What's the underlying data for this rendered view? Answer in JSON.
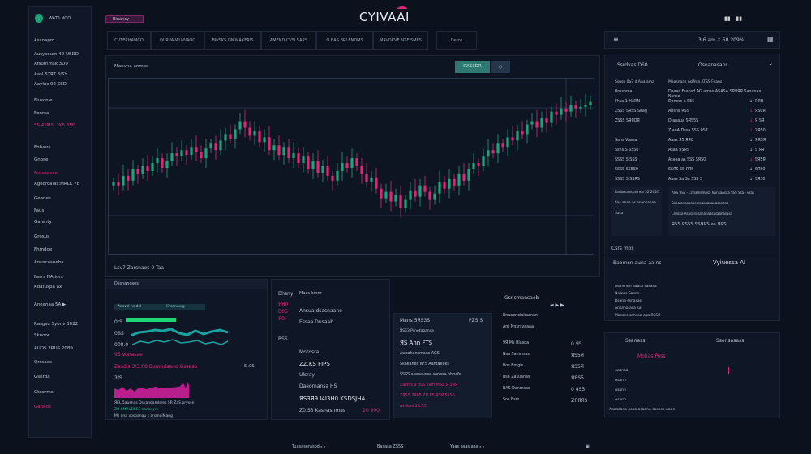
{
  "app": {
    "logo": "CYIVAAI",
    "user": "WAT5 NOO",
    "badge": "Binancy",
    "icons": [
      "filter-icon",
      "grid-icon"
    ],
    "header_stats": "3.6 am  ↕  50.209%"
  },
  "tabs": [
    "CVTERHAMCO",
    "QURVAVALNVAOQ",
    "BWSKS DN MAXERIS",
    "AMEND CVSLSARS",
    "O BAS BRI ENDMS",
    "MAVDKVE NXE SMES",
    "Deros"
  ],
  "sidebar": {
    "items": [
      {
        "label": "Assnapm"
      },
      {
        "label": "Ausysoum 42 USDD"
      },
      {
        "label": "Afsutnmsk 3D9"
      },
      {
        "label": "Aasl 5TRT 8/5Y"
      },
      {
        "label": "Aaylus 02 SSD"
      },
      {
        "label": "Fluscnle"
      },
      {
        "label": "Fonrsa"
      },
      {
        "label": "SS 4SMS. 2K5  3MS",
        "accent": true
      },
      {
        "label": "Fhtvors"
      },
      {
        "label": "Gnose"
      },
      {
        "label": "Fanuzavse",
        "accent": true
      },
      {
        "label": "Agoorcalas:MRLK 7B"
      },
      {
        "label": "Geanes"
      },
      {
        "label": "Faus"
      },
      {
        "label": "Gafanty"
      },
      {
        "label": "Grosus"
      },
      {
        "label": "Fhmdoe"
      },
      {
        "label": "Anuscasneba"
      },
      {
        "label": "Fasrs NAtiors"
      },
      {
        "label": "Kdatuspa ax"
      },
      {
        "label": "Aneanaa  5A  ▶"
      },
      {
        "label": "Rasgsu Syonv 3022"
      },
      {
        "label": "Sknoor"
      },
      {
        "label": "AUDS 2RUS 2089"
      },
      {
        "label": "Qrssaes"
      },
      {
        "label": "Gsnrda"
      },
      {
        "label": "Gteorms"
      },
      {
        "label": "Ganeds",
        "accent": true
      }
    ]
  },
  "chart": {
    "title": "Manvna anmas",
    "toggle_active": "ЯXS3DR",
    "toggle_other": "◇",
    "footer": "Lsv7 Zarsnaes  0  Taa",
    "closes": [
      40,
      38,
      44,
      41,
      48,
      45,
      50,
      47,
      52,
      55,
      49,
      53,
      58,
      56,
      60,
      57,
      62,
      59,
      55,
      61,
      64,
      60,
      66,
      70,
      67,
      73,
      78,
      74,
      69,
      72,
      65,
      68,
      60,
      63,
      57,
      62,
      55,
      58,
      52,
      56,
      48,
      53,
      46,
      50,
      44,
      41,
      47,
      52,
      49,
      55,
      50,
      45,
      40,
      43,
      36,
      30,
      34,
      28,
      32,
      24,
      29,
      35,
      31,
      38,
      34,
      29,
      33,
      40,
      36,
      42,
      38,
      45,
      41,
      48,
      52,
      50,
      56,
      60,
      58,
      64,
      62,
      68,
      66,
      72,
      70,
      76,
      78,
      74,
      80,
      77,
      84,
      82,
      86,
      84,
      88,
      86,
      87,
      88,
      90,
      89
    ]
  },
  "left_bottom": {
    "title": "Dssnanoxes",
    "chips": [
      "Adsvsl ns dsl",
      "Crsanauig"
    ],
    "labels": [
      "0tS",
      "0BS",
      "008.0",
      "9S Vonasae"
    ],
    "row1": "Zasdis 3/3.Я8 Bumndsano Ossesb",
    "row2": "3/S",
    "legend": [
      "ЯEL 5ausnas Dskanoamlsres  SR  ZaS prysse",
      "ZЯ  SMRUBSSE  kanasyrs",
      "Ms  ona vosoanau s ananoiMang"
    ],
    "tag": "Sl.0S"
  },
  "mid": {
    "tabs": [
      "Bhsny",
      "ЯЯ0",
      "B0Б",
      "Я0І",
      "BSS"
    ],
    "head": "Maos kmnr",
    "rows": [
      "Ansua dsasnaane",
      "Essaa Dusaab",
      "Mntosra",
      "ZZ.KS FIPS",
      "Ulsray",
      "Daeornansa HS",
      "ЯS3Я9 I4I3H0 KSDSJHA",
      "Z0.S3  Kasnasnmas",
      "20 990"
    ]
  },
  "order": {
    "head": "Mans 5ЯS3S",
    "head_r": "PZS S",
    "sub": "ЯS5З Psnotgoansa",
    "title": "ЯS Ann FTS",
    "rows": [
      "Awcahansmans AGS",
      "Skaeanes NFS Aantaeaes",
      "SSSS aseaavsee sonasa ohhafs",
      "Zasms a dSS 3am  MSZ.Я 2ЯЯ",
      "ZЯSS 7Я85  ZЯ Я5 ЯЗЯ 55S5",
      "Asdeas 2S.S3"
    ]
  },
  "book": {
    "head": "Gsnsmansaeb",
    "ctrl": "◄ ▶ ▶",
    "rows": [
      [
        "Bnaaenolakaanan",
        ""
      ],
      [
        "Ant  Nnsrsvaaaa",
        ""
      ],
      [
        "9Я Ms Rlasoa",
        "0 Я5"
      ],
      [
        "Nsa Sansnsas",
        "ЯS5Я"
      ],
      [
        "Bos Bmgis",
        "ЯS5Я"
      ],
      [
        "Bsa Zasuanas",
        "ЯЯS5"
      ],
      [
        "BAS Danmsas",
        "0 4S5"
      ],
      [
        "Sos Bsm",
        "ZЯЯЯS"
      ]
    ]
  },
  "right": {
    "sel_label": "Ssrdvas DS0",
    "sel_value": "Osnanasans",
    "hdr": [
      "Ssnsn 0a3 d Aaa ama",
      "Maasnaas nslfma ATSS Foans"
    ],
    "rows": [
      [
        "Rossoma",
        "Daaas  Fsansd AG amas ASASA  SЯЯЯЯ  Sananaa Nsnse",
        "",
        ""
      ],
      [
        "Fhsa  1 HARN",
        "Donsss a S55",
        "ЯЯЯ",
        false
      ],
      [
        "ZSSS  SЯSS Seag",
        "Ansna RSS",
        "ЯS0Я",
        true
      ],
      [
        "ZSSS  SЯЯOЯ",
        "D anaua  SЯS5S",
        "Я SЯ",
        true
      ],
      [
        "",
        "Z.anA  Dssa  SSS ЯS7",
        "ZЯ50",
        true
      ],
      [
        "Sans Vaasa",
        "Aaas Я5 ЯЯ0",
        "ЯЯSЯ",
        false
      ],
      [
        "Ssns S S5S0",
        "Asaa  ЯSЯS",
        "S ЯЯ",
        false
      ],
      [
        "SSSS  S SSS",
        "Asaaa as SSS SЯS0",
        "SЯ5Я",
        true
      ],
      [
        "SSSS  SS5S0",
        "SSЯS  SS ЯЯS",
        "SЯS0",
        false
      ],
      [
        "SSSS  S SSЯS",
        "Aaas Sa Sa SSS S",
        "SЯS0",
        false
      ]
    ],
    "info_left": [
      "Fanbmaas asnsa  52 2020",
      "Sas anaa as anansanaa",
      "Sasa"
    ],
    "info_right": [
      "AЯS ЯSS -  Cnnamsmnsa Nunsansaa  SSS Ssa  -  vsas",
      "Saaa anaaanas naaasanaaasanans",
      "Cnassa Asasanasananaasasaanasasa",
      "ЯSS ЯSSS SSЯЯS as ЯЯS"
    ],
    "caption": "Csrs mos",
    "sec_left": "Baornsn auna aa ns",
    "sec_right": "Vyiuessa AI",
    "list": [
      "Asmsnen aaara sasasa",
      "Nssass Sasns",
      "Rsana ssnasas",
      "Ansana asa sa",
      "Masses sahsaa asa ЯSSЯ"
    ],
    "bot_head_l": "Ssanass",
    "bot_head_r": "Ssonsasass",
    "bot_tag": "Mohas Poss",
    "bot_rows": [
      "Aasnaa",
      "Asann",
      "Asann",
      "Asann"
    ],
    "bot_foot": "Aaasaana asaa asaana sasasa Aaan"
  },
  "footer": [
    "Tuasaserasod  ₈ ₈",
    "Basasa  ZS5S",
    "Yaas asas aaa  ₈ ₈",
    "▣"
  ],
  "colors": {
    "bg": "#0b111d",
    "panel": "#0f1726",
    "up": "#1fa37a",
    "down": "#e0267a",
    "accent": "#e0267a"
  }
}
